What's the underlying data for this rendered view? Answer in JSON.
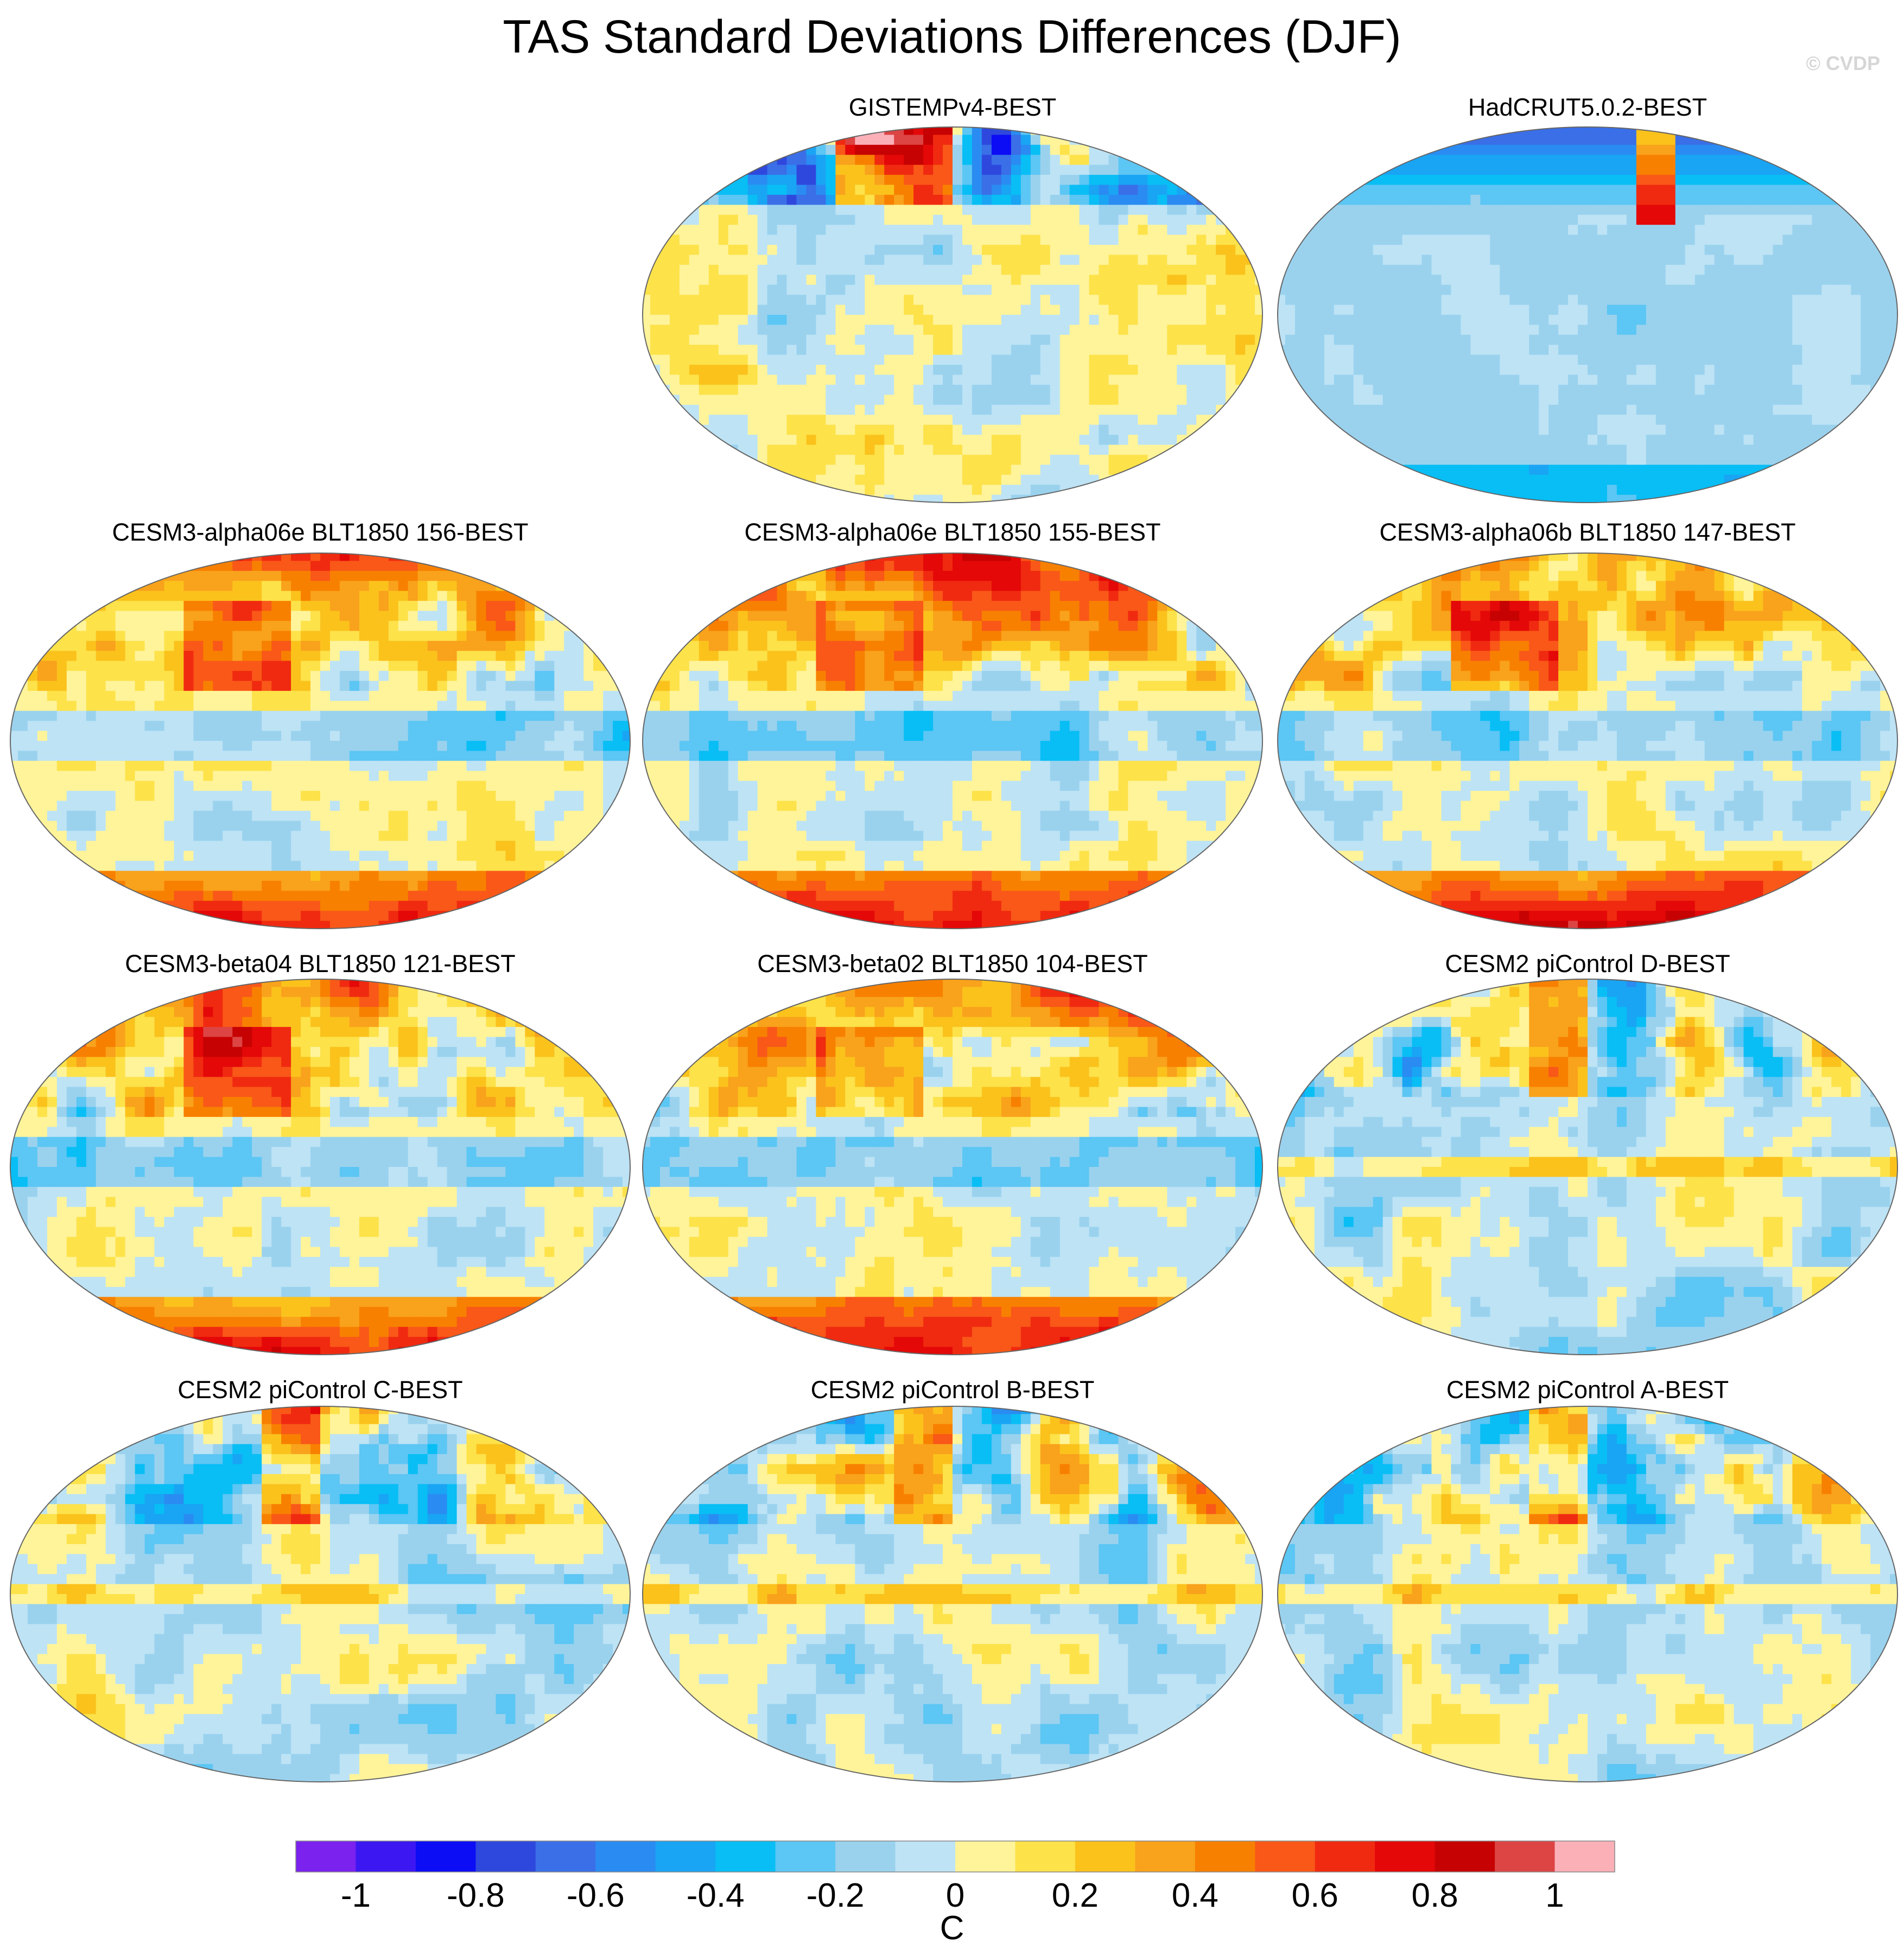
{
  "title": "TAS Standard Deviations Differences (DJF)",
  "watermark": "© CVDP",
  "chart_data": {
    "type": "heatmap",
    "projection": "robinson",
    "season": "DJF",
    "variable": "TAS",
    "units": "C",
    "panels": [
      {
        "title": "GISTEMPv4-BEST",
        "pattern": "obs_gistemp"
      },
      {
        "title": "HadCRUT5.0.2-BEST",
        "pattern": "obs_hadcrut"
      },
      {
        "title": "CESM3-alpha06e BLT1850 156-BEST",
        "pattern": "cesm3"
      },
      {
        "title": "CESM3-alpha06e BLT1850 155-BEST",
        "pattern": "cesm3"
      },
      {
        "title": "CESM3-alpha06b BLT1850 147-BEST",
        "pattern": "cesm3"
      },
      {
        "title": "CESM3-beta04 BLT1850 121-BEST",
        "pattern": "cesm3"
      },
      {
        "title": "CESM3-beta02 BLT1850 104-BEST",
        "pattern": "cesm3"
      },
      {
        "title": "CESM2 piControl D-BEST",
        "pattern": "cesm2"
      },
      {
        "title": "CESM2 piControl C-BEST",
        "pattern": "cesm2"
      },
      {
        "title": "CESM2 piControl B-BEST",
        "pattern": "cesm2"
      },
      {
        "title": "CESM2 piControl A-BEST",
        "pattern": "cesm2"
      }
    ],
    "colorbar": {
      "levels": [
        -1,
        -0.9,
        -0.8,
        -0.7,
        -0.6,
        -0.5,
        -0.4,
        -0.3,
        -0.2,
        -0.1,
        0,
        0.1,
        0.2,
        0.3,
        0.4,
        0.5,
        0.6,
        0.7,
        0.8,
        0.9,
        1
      ],
      "tick_labels": [
        "-1",
        "-0.8",
        "-0.6",
        "-0.4",
        "-0.2",
        "0",
        "0.2",
        "0.4",
        "0.6",
        "0.8",
        "1"
      ],
      "tick_values": [
        -1,
        -0.8,
        -0.6,
        -0.4,
        -0.2,
        0,
        0.2,
        0.4,
        0.6,
        0.8,
        1
      ],
      "colors": [
        "#7b22ee",
        "#3c17f2",
        "#0c0cf5",
        "#2e48de",
        "#3a6fe8",
        "#2a8cf2",
        "#1aa4f4",
        "#08bef5",
        "#5cc6f4",
        "#9ad2ee",
        "#bde3f5",
        "#fff49a",
        "#fde24a",
        "#fbc21c",
        "#f9a21c",
        "#f88000",
        "#f95818",
        "#f02a10",
        "#e40808",
        "#c70202",
        "#dd4444",
        "#fbb0b8"
      ],
      "units": "C"
    }
  }
}
